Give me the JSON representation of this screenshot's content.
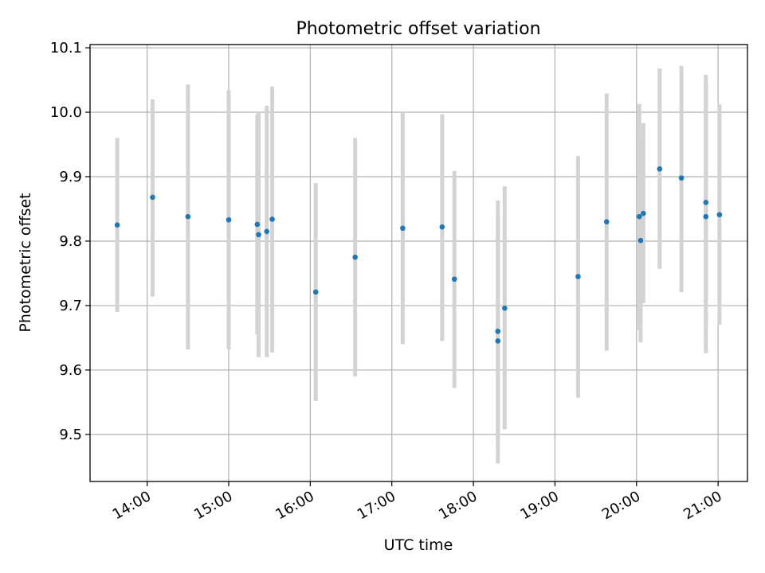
{
  "chart_data": {
    "type": "scatter",
    "title": "Photometric offset variation",
    "xlabel": "UTC time",
    "ylabel": "Photometric offset",
    "x_ticks": [
      "14:00",
      "15:00",
      "16:00",
      "17:00",
      "18:00",
      "19:00",
      "20:00",
      "21:00"
    ],
    "x_tick_hours": [
      14,
      15,
      16,
      17,
      18,
      19,
      20,
      21
    ],
    "xlim_hours": [
      13.3,
      21.36
    ],
    "y_ticks": [
      "9.5",
      "9.6",
      "9.7",
      "9.8",
      "9.9",
      "10.0",
      "10.1"
    ],
    "y_tick_values": [
      9.5,
      9.6,
      9.7,
      9.8,
      9.9,
      10.0,
      10.1
    ],
    "ylim": [
      9.427,
      10.105
    ],
    "grid": true,
    "colors": {
      "points": "#1f77b4",
      "errorbars": "#d3d3d3",
      "grid": "#b0b0b0"
    },
    "points": [
      {
        "time": "13:38",
        "y": 9.825,
        "low": 9.69,
        "high": 9.96
      },
      {
        "time": "14:04",
        "y": 9.868,
        "low": 9.714,
        "high": 10.02
      },
      {
        "time": "14:30",
        "y": 9.838,
        "low": 9.632,
        "high": 10.043
      },
      {
        "time": "15:00",
        "y": 9.833,
        "low": 9.632,
        "high": 10.034
      },
      {
        "time": "15:21",
        "y": 9.826,
        "low": 9.656,
        "high": 9.996
      },
      {
        "time": "15:22",
        "y": 9.81,
        "low": 9.62,
        "high": 10.0
      },
      {
        "time": "15:28",
        "y": 9.815,
        "low": 9.62,
        "high": 10.01
      },
      {
        "time": "15:32",
        "y": 9.834,
        "low": 9.627,
        "high": 10.04
      },
      {
        "time": "16:04",
        "y": 9.721,
        "low": 9.552,
        "high": 9.89
      },
      {
        "time": "16:33",
        "y": 9.775,
        "low": 9.59,
        "high": 9.96
      },
      {
        "time": "17:08",
        "y": 9.82,
        "low": 9.64,
        "high": 10.0
      },
      {
        "time": "17:37",
        "y": 9.822,
        "low": 9.645,
        "high": 9.997
      },
      {
        "time": "17:46",
        "y": 9.741,
        "low": 9.572,
        "high": 9.909
      },
      {
        "time": "18:18",
        "y": 9.66,
        "low": 9.48,
        "high": 9.84
      },
      {
        "time": "18:18",
        "y": 9.645,
        "low": 9.455,
        "high": 9.863
      },
      {
        "time": "18:23",
        "y": 9.696,
        "low": 9.508,
        "high": 9.885
      },
      {
        "time": "19:17",
        "y": 9.745,
        "low": 9.557,
        "high": 9.932
      },
      {
        "time": "19:38",
        "y": 9.83,
        "low": 9.63,
        "high": 10.029
      },
      {
        "time": "20:02",
        "y": 9.838,
        "low": 9.662,
        "high": 10.013
      },
      {
        "time": "20:03",
        "y": 9.801,
        "low": 9.643,
        "high": 9.96
      },
      {
        "time": "20:05",
        "y": 9.843,
        "low": 9.704,
        "high": 9.983
      },
      {
        "time": "20:17",
        "y": 9.912,
        "low": 9.757,
        "high": 10.068
      },
      {
        "time": "20:33",
        "y": 9.898,
        "low": 9.721,
        "high": 10.072
      },
      {
        "time": "20:51",
        "y": 9.838,
        "low": 9.626,
        "high": 10.049
      },
      {
        "time": "20:51",
        "y": 9.86,
        "low": 9.662,
        "high": 10.058
      },
      {
        "time": "21:01",
        "y": 9.841,
        "low": 9.67,
        "high": 10.012
      }
    ]
  }
}
